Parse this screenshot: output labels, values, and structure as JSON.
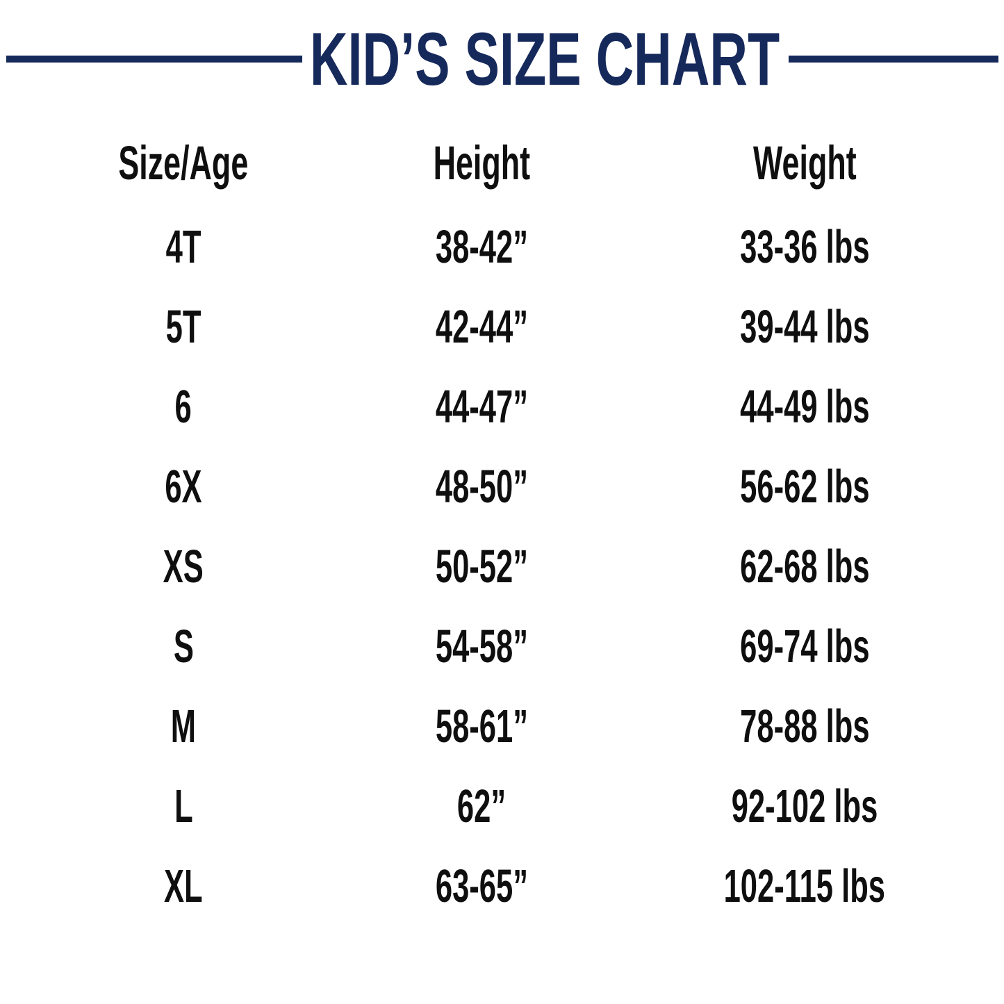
{
  "page": {
    "background": "#ffffff",
    "navy": "#16295b",
    "text_color": "#0f0f0f"
  },
  "title": {
    "text": "KID’S SIZE CHART"
  },
  "table": {
    "headers": [
      "Size/Age",
      "Height",
      "Weight"
    ],
    "rows": [
      {
        "size": "4T",
        "height": "38-42”",
        "weight": "33-36 lbs"
      },
      {
        "size": "5T",
        "height": "42-44”",
        "weight": "39-44 lbs"
      },
      {
        "size": "6",
        "height": "44-47”",
        "weight": "44-49 lbs"
      },
      {
        "size": "6X",
        "height": "48-50”",
        "weight": "56-62 lbs"
      },
      {
        "size": "XS",
        "height": "50-52”",
        "weight": "62-68 lbs"
      },
      {
        "size": "S",
        "height": "54-58”",
        "weight": "69-74 lbs"
      },
      {
        "size": "M",
        "height": "58-61”",
        "weight": "78-88 lbs"
      },
      {
        "size": "L",
        "height": "62”",
        "weight": "92-102 lbs"
      },
      {
        "size": "XL",
        "height": "63-65”",
        "weight": "102-115 lbs"
      }
    ]
  },
  "chart_data": {
    "type": "table",
    "title": "KID’S SIZE CHART",
    "columns": [
      "Size/Age",
      "Height",
      "Weight"
    ],
    "rows": [
      [
        "4T",
        "38-42”",
        "33-36 lbs"
      ],
      [
        "5T",
        "42-44”",
        "39-44 lbs"
      ],
      [
        "6",
        "44-47”",
        "44-49 lbs"
      ],
      [
        "6X",
        "48-50”",
        "56-62 lbs"
      ],
      [
        "XS",
        "50-52”",
        "62-68 lbs"
      ],
      [
        "S",
        "54-58”",
        "69-74 lbs"
      ],
      [
        "M",
        "58-61”",
        "78-88 lbs"
      ],
      [
        "L",
        "62”",
        "92-102 lbs"
      ],
      [
        "XL",
        "63-65”",
        "102-115 lbs"
      ]
    ]
  }
}
